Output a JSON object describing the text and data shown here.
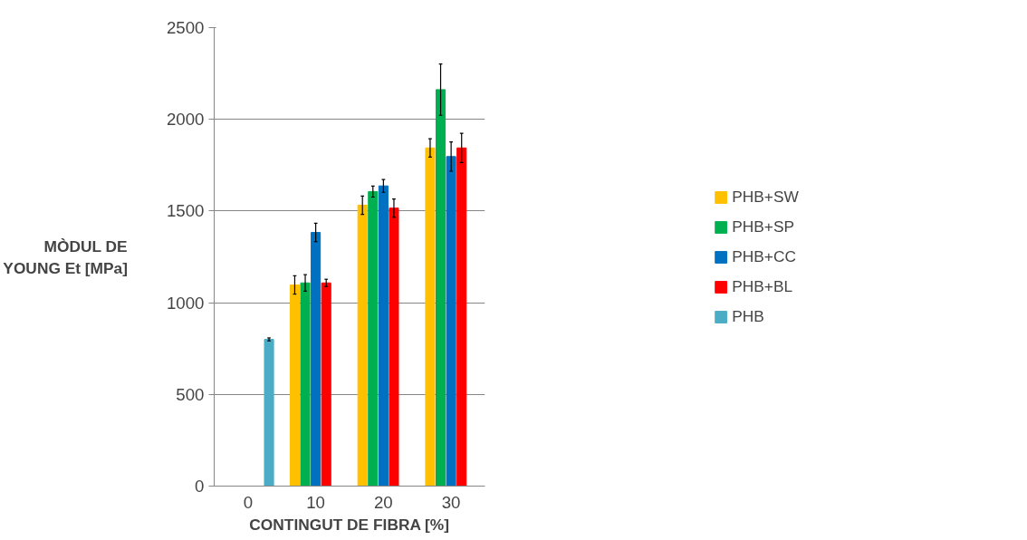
{
  "chart_data": {
    "type": "bar",
    "xlabel": "CONTINGUT DE FIBRA [%]",
    "ylabel": "MÒDUL DE YOUNG Et [MPa]",
    "categories": [
      "0",
      "10",
      "20",
      "30"
    ],
    "series": [
      {
        "name": "PHB+SW",
        "color": "#ffc000",
        "values": [
          null,
          1097,
          1532,
          1844
        ],
        "errors": [
          null,
          50,
          50,
          50
        ]
      },
      {
        "name": "PHB+SP",
        "color": "#00b050",
        "values": [
          null,
          1108,
          1606,
          2162
        ],
        "errors": [
          null,
          45,
          30,
          140
        ]
      },
      {
        "name": "PHB+CC",
        "color": "#0070c0",
        "values": [
          null,
          1383,
          1637,
          1797
        ],
        "errors": [
          null,
          50,
          35,
          80
        ]
      },
      {
        "name": "PHB+BL",
        "color": "#ff0000",
        "values": [
          null,
          1108,
          1516,
          1844
        ],
        "errors": [
          null,
          20,
          50,
          80
        ]
      },
      {
        "name": "PHB",
        "color": "#4bacc6",
        "values": [
          800,
          null,
          null,
          null
        ],
        "errors": [
          8,
          null,
          null,
          null
        ]
      }
    ],
    "ylim": [
      0,
      2500
    ],
    "yticks": [
      0,
      500,
      1000,
      1500,
      2000,
      2500
    ],
    "grid": "y",
    "legend": "right"
  }
}
